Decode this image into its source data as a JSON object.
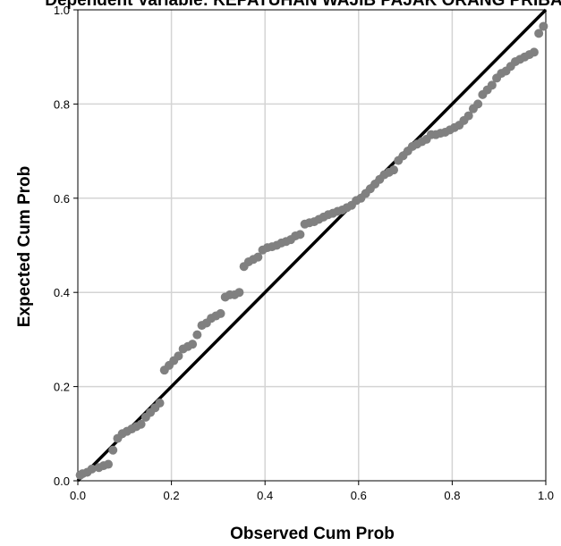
{
  "chart_data": {
    "type": "scatter",
    "title": "Dependent Variable: KEPATUHAN WAJIB PAJAK ORANG PRIBADI",
    "xlabel": "Observed Cum Prob",
    "ylabel": "Expected Cum Prob",
    "xlim": [
      0,
      1
    ],
    "ylim": [
      0,
      1
    ],
    "xticks": [
      "0.0",
      "0.2",
      "0.4",
      "0.6",
      "0.8",
      "1.0"
    ],
    "yticks": [
      "0.0",
      "0.2",
      "0.4",
      "0.6",
      "0.8",
      "1.0"
    ],
    "grid": true,
    "legend": "none",
    "colors": {
      "points": "#808080",
      "reference_line": "#000000",
      "grid": "#d4d4d4",
      "axes": "#000000"
    },
    "reference_line": {
      "from": [
        0,
        0
      ],
      "to": [
        1,
        1
      ]
    },
    "series": [
      {
        "x": [
          0.005,
          0.01,
          0.02,
          0.03,
          0.045,
          0.055,
          0.065,
          0.075,
          0.085,
          0.095,
          0.105,
          0.115,
          0.125,
          0.135,
          0.145,
          0.155,
          0.165,
          0.175,
          0.185,
          0.195,
          0.205,
          0.215,
          0.225,
          0.235,
          0.245,
          0.255,
          0.265,
          0.275,
          0.285,
          0.295,
          0.305,
          0.315,
          0.325,
          0.335,
          0.345,
          0.355,
          0.365,
          0.375,
          0.385,
          0.395,
          0.405,
          0.415,
          0.425,
          0.435,
          0.445,
          0.455,
          0.465,
          0.475,
          0.485,
          0.495,
          0.505,
          0.515,
          0.525,
          0.535,
          0.545,
          0.555,
          0.565,
          0.575,
          0.585,
          0.595,
          0.605,
          0.615,
          0.625,
          0.635,
          0.645,
          0.655,
          0.665,
          0.675,
          0.685,
          0.695,
          0.705,
          0.715,
          0.725,
          0.735,
          0.745,
          0.755,
          0.765,
          0.775,
          0.785,
          0.795,
          0.805,
          0.815,
          0.825,
          0.835,
          0.845,
          0.855,
          0.865,
          0.875,
          0.885,
          0.895,
          0.905,
          0.915,
          0.925,
          0.935,
          0.945,
          0.955,
          0.965,
          0.975,
          0.985,
          0.995
        ],
        "y": [
          0.012,
          0.015,
          0.018,
          0.025,
          0.028,
          0.032,
          0.035,
          0.065,
          0.09,
          0.1,
          0.105,
          0.11,
          0.115,
          0.12,
          0.135,
          0.145,
          0.155,
          0.165,
          0.235,
          0.245,
          0.255,
          0.265,
          0.28,
          0.285,
          0.29,
          0.31,
          0.33,
          0.335,
          0.345,
          0.35,
          0.355,
          0.39,
          0.395,
          0.395,
          0.4,
          0.455,
          0.465,
          0.47,
          0.475,
          0.49,
          0.495,
          0.497,
          0.5,
          0.505,
          0.508,
          0.512,
          0.52,
          0.523,
          0.545,
          0.548,
          0.55,
          0.555,
          0.56,
          0.565,
          0.568,
          0.572,
          0.575,
          0.58,
          0.585,
          0.595,
          0.6,
          0.61,
          0.62,
          0.63,
          0.64,
          0.65,
          0.655,
          0.66,
          0.68,
          0.69,
          0.7,
          0.71,
          0.715,
          0.72,
          0.725,
          0.735,
          0.735,
          0.738,
          0.74,
          0.745,
          0.75,
          0.755,
          0.765,
          0.775,
          0.79,
          0.8,
          0.82,
          0.83,
          0.84,
          0.855,
          0.865,
          0.87,
          0.88,
          0.89,
          0.895,
          0.9,
          0.905,
          0.91,
          0.95,
          0.965
        ]
      }
    ]
  }
}
